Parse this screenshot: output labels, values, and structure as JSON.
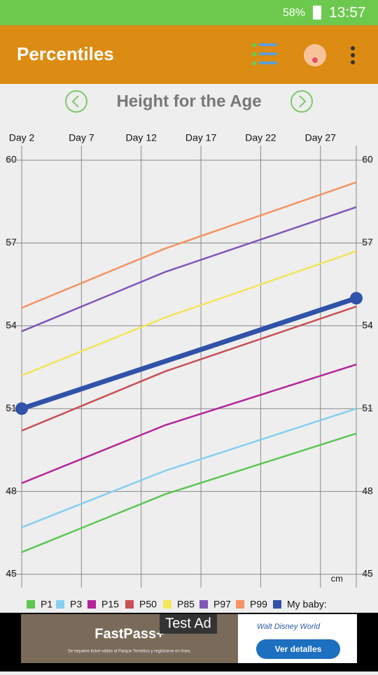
{
  "status_bar": {
    "battery": "58%",
    "time": "13:57"
  },
  "app_bar": {
    "title": "Percentiles"
  },
  "chart_data": {
    "type": "line",
    "title": "Height for the Age",
    "x": [
      2,
      14,
      30
    ],
    "xlim": [
      2,
      30
    ],
    "xticks": [
      {
        "value": 2,
        "label": "Day 2"
      },
      {
        "value": 7,
        "label": "Day 7"
      },
      {
        "value": 12,
        "label": "Day 12"
      },
      {
        "value": 17,
        "label": "Day 17"
      },
      {
        "value": 22,
        "label": "Day 22"
      },
      {
        "value": 27,
        "label": "Day 27"
      }
    ],
    "ylim": [
      45,
      60
    ],
    "yticks": [
      45,
      48,
      51,
      54,
      57,
      60
    ],
    "y_unit": "cm",
    "grid": true,
    "series": [
      {
        "name": "P1",
        "color": "#5cc752",
        "values": [
          45.8,
          47.9,
          50.1
        ]
      },
      {
        "name": "P3",
        "color": "#86cff0",
        "values": [
          46.7,
          48.75,
          51.0
        ]
      },
      {
        "name": "P15",
        "color": "#b5249a",
        "values": [
          48.3,
          50.4,
          52.6
        ]
      },
      {
        "name": "P50",
        "color": "#c94f55",
        "values": [
          50.2,
          52.35,
          54.7
        ]
      },
      {
        "name": "P85",
        "color": "#f2e65a",
        "values": [
          52.2,
          54.3,
          56.7
        ]
      },
      {
        "name": "P97",
        "color": "#7f57b8",
        "values": [
          53.8,
          55.95,
          58.3
        ]
      },
      {
        "name": "P99",
        "color": "#f59362",
        "values": [
          54.65,
          56.8,
          59.2
        ]
      },
      {
        "name": "My baby:",
        "color": "#3052a8",
        "x": [
          2,
          30
        ],
        "values": [
          51.0,
          55.0
        ]
      }
    ]
  },
  "ad": {
    "badge": "Test Ad",
    "brand": "FastPass+",
    "note": "Se requiere ticket válido al Parque Temático y registrarse en línea.",
    "advertiser": "Walt Disney World",
    "button": "Ver detalles"
  }
}
